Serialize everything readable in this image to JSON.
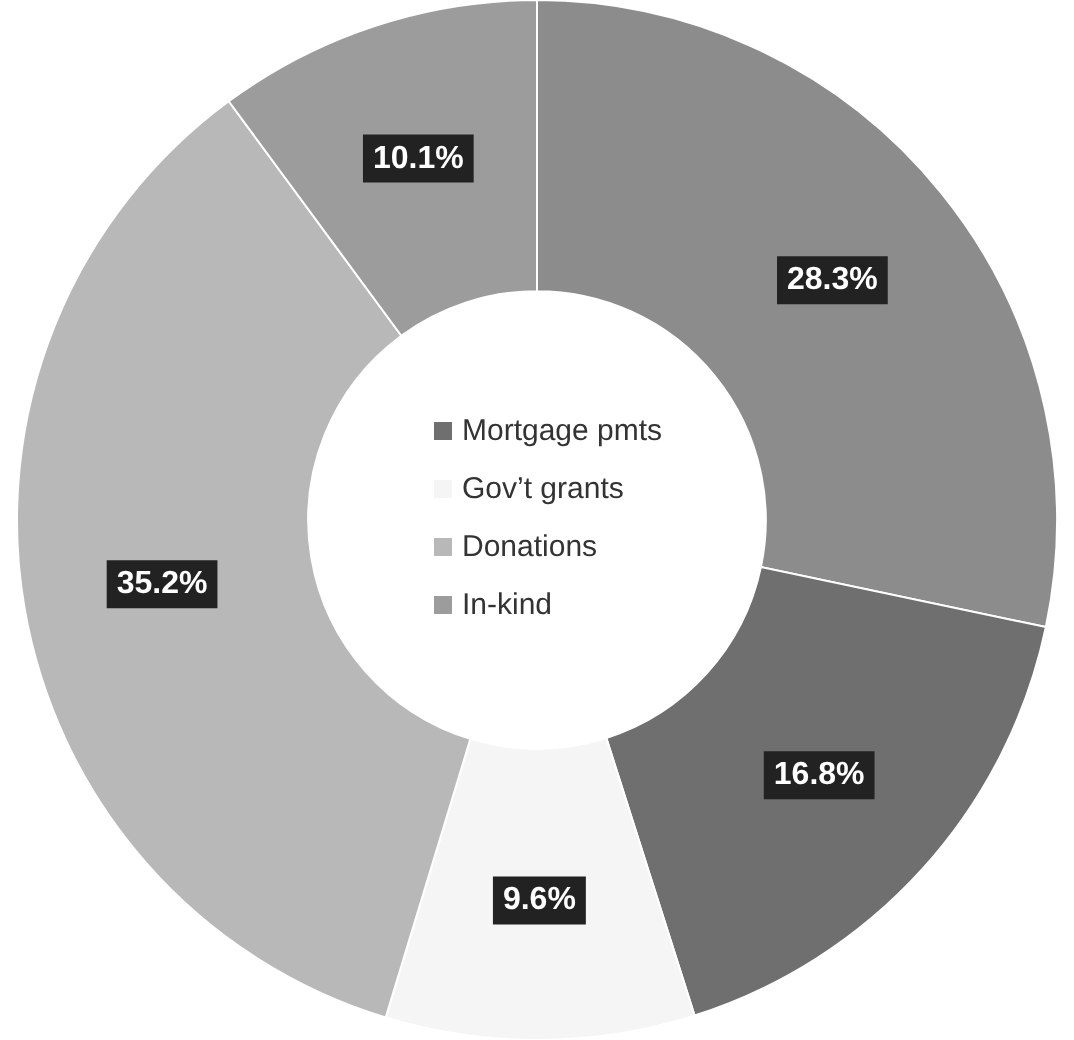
{
  "chart_data": {
    "type": "donut",
    "categories": [
      null,
      "Mortgage pmts",
      "Gov’t grants",
      "Donations",
      "In-kind"
    ],
    "values": [
      28.3,
      16.8,
      9.6,
      35.2,
      10.1
    ],
    "value_labels": [
      "28.3%",
      "16.8%",
      "9.6%",
      "35.2%",
      "10.1%"
    ],
    "colors": [
      "#8c8c8c",
      "#6f6f6f",
      "#f5f5f5",
      "#b8b8b8",
      "#9c9c9c"
    ],
    "legend": "center"
  }
}
